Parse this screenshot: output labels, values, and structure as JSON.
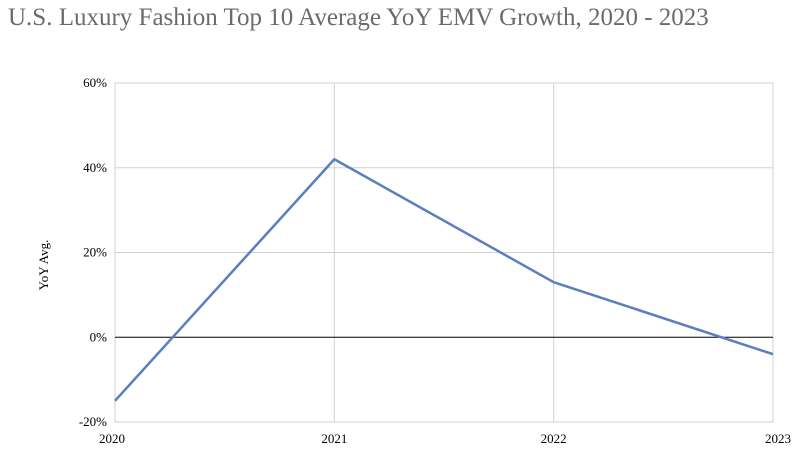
{
  "chart_data": {
    "type": "line",
    "title": "U.S. Luxury Fashion Top 10 Average YoY EMV Growth, 2020 - 2023",
    "xlabel": "",
    "ylabel": "YoY Avg.",
    "categories": [
      "2020",
      "2021",
      "2022",
      "2023"
    ],
    "series": [
      {
        "values": [
          -15,
          42,
          13,
          -4
        ]
      }
    ],
    "ylim": [
      -20,
      60
    ],
    "yticks": [
      -20,
      0,
      20,
      40,
      60
    ],
    "ytick_labels": [
      "-20%",
      "0%",
      "20%",
      "40%",
      "60%"
    ],
    "grid": true,
    "legend": "none",
    "colors": {
      "line": "#5b7fbd",
      "grid": "#d0d0d0",
      "zero_line": "#000000"
    }
  }
}
